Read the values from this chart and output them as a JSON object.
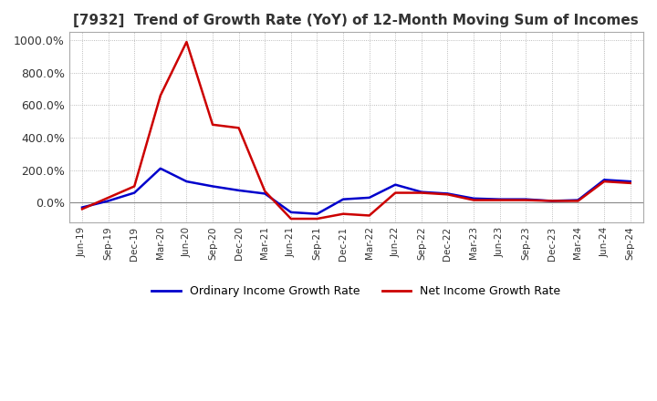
{
  "title": "[7932]  Trend of Growth Rate (YoY) of 12-Month Moving Sum of Incomes",
  "x_labels": [
    "Jun-19",
    "Sep-19",
    "Dec-19",
    "Mar-20",
    "Jun-20",
    "Sep-20",
    "Dec-20",
    "Mar-21",
    "Jun-21",
    "Sep-21",
    "Dec-21",
    "Mar-22",
    "Jun-22",
    "Sep-22",
    "Dec-22",
    "Mar-23",
    "Jun-23",
    "Sep-23",
    "Dec-23",
    "Mar-24",
    "Jun-24",
    "Sep-24"
  ],
  "ordinary_income": [
    -30,
    10,
    60,
    210,
    130,
    100,
    75,
    55,
    -60,
    -70,
    20,
    30,
    110,
    65,
    55,
    25,
    20,
    20,
    10,
    15,
    140,
    130
  ],
  "net_income": [
    -40,
    30,
    100,
    660,
    990,
    480,
    460,
    70,
    -100,
    -100,
    -70,
    -80,
    60,
    60,
    50,
    15,
    15,
    15,
    10,
    10,
    130,
    120
  ],
  "ylim": [
    -120,
    1050
  ],
  "yticks": [
    0,
    200,
    400,
    600,
    800,
    1000
  ],
  "ordinary_color": "#0000cc",
  "net_color": "#cc0000",
  "legend_ordinary": "Ordinary Income Growth Rate",
  "legend_net": "Net Income Growth Rate",
  "background_color": "#ffffff",
  "grid_color": "#aaaaaa",
  "title_color": "#333333"
}
